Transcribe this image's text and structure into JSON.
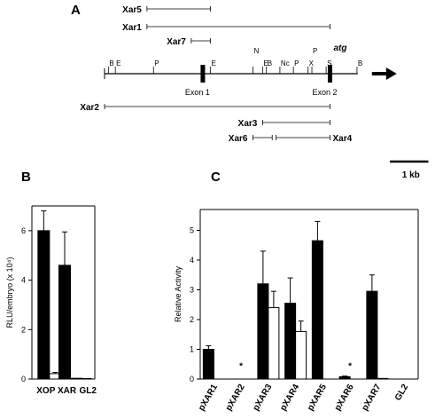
{
  "panels": {
    "a": "A",
    "b": "B",
    "c": "C"
  },
  "map": {
    "sites": [
      {
        "label": "B",
        "kb": 0.1
      },
      {
        "label": "E",
        "kb": 0.28
      },
      {
        "label": "P",
        "kb": 1.27
      },
      {
        "label": "E",
        "kb": 2.75
      },
      {
        "label": "N",
        "kb": 3.85
      },
      {
        "label": "E",
        "kb": 4.1
      },
      {
        "label": "B",
        "kb": 4.2
      },
      {
        "label": "Nc",
        "kb": 4.55
      },
      {
        "label": "P",
        "kb": 4.9
      },
      {
        "label": "P",
        "kb": 5.38
      },
      {
        "label": "X",
        "kb": 5.28
      },
      {
        "label": "S",
        "kb": 5.75
      },
      {
        "label": "B",
        "kb": 6.55
      }
    ],
    "exons": [
      {
        "label": "Exon 1",
        "kb": 2.55
      },
      {
        "label": "Exon 2",
        "kb": 5.85
      }
    ],
    "atg": {
      "label": "atg",
      "kb": 5.85
    },
    "length_kb": 6.8,
    "fragments_above": [
      {
        "label": "Xar5",
        "start_kb": 1.1,
        "end_kb": 2.75
      },
      {
        "label": "Xar1",
        "start_kb": 1.1,
        "end_kb": 5.85
      },
      {
        "label": "Xar7",
        "start_kb": 2.25,
        "end_kb": 2.75
      }
    ],
    "fragments_below": [
      {
        "label": "Xar2",
        "start_kb": 0.0,
        "end_kb": 5.85
      },
      {
        "label": "Xar3",
        "start_kb": 4.1,
        "end_kb": 5.85
      },
      {
        "label": "Xar6",
        "start_kb": 3.85,
        "end_kb": 4.35
      },
      {
        "label": "Xar4",
        "start_kb": 4.45,
        "end_kb": 5.85
      }
    ],
    "scale": {
      "label": "1 kb",
      "kb": 1.0
    }
  },
  "chart_data": [
    {
      "type": "bar",
      "ylabel": "RLU/embryo (x 10⁴)",
      "ylim": [
        0,
        7
      ],
      "yticks": [
        0,
        2,
        4,
        6
      ],
      "categories": [
        "XOP",
        "XAR",
        "GL2"
      ],
      "series": [
        {
          "values": [
            6.0,
            4.6,
            0.02
          ],
          "errors": [
            0.8,
            1.35,
            0.0
          ],
          "fill": "#000000"
        },
        {
          "values": [
            0.22,
            0.03,
            0.01
          ],
          "errors": [
            0.05,
            0.0,
            0.0
          ],
          "fill": "#ffffff"
        }
      ]
    },
    {
      "type": "bar",
      "ylabel": "Relative Activity",
      "ylim": [
        0,
        5.7
      ],
      "yticks": [
        0,
        1,
        2,
        3,
        4,
        5
      ],
      "categories": [
        "pXAR1",
        "pXAR2",
        "pXAR3",
        "pXAR4",
        "pXAR5",
        "pXAR6",
        "pXAR7",
        "GL2"
      ],
      "annotations": [
        {
          "category": "pXAR2",
          "text": "*"
        },
        {
          "category": "pXAR6",
          "text": "*"
        }
      ],
      "series": [
        {
          "values": [
            1.0,
            0,
            3.2,
            2.55,
            4.65,
            0.08,
            2.95,
            0
          ],
          "errors": [
            0.12,
            0,
            1.1,
            0.85,
            0.65,
            0.02,
            0.55,
            0
          ],
          "fill": "#000000"
        },
        {
          "values": [
            0,
            0,
            2.4,
            1.6,
            0,
            0,
            0.02,
            0
          ],
          "errors": [
            0,
            0,
            0.55,
            0.35,
            0,
            0,
            0,
            0
          ],
          "fill": "#ffffff"
        }
      ]
    }
  ]
}
